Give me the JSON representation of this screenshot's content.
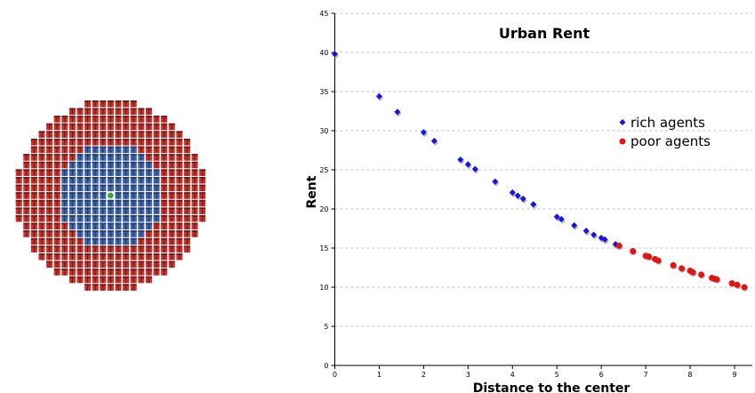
{
  "city": {
    "colors": {
      "rich": "#3d63a8",
      "rich_dark": "#1e3568",
      "poor": "#c6312b",
      "poor_dark": "#6a1511",
      "center": "#3aa63a"
    },
    "center": [
      14,
      12
    ],
    "radius": 12.5,
    "rich_radius": 6.8
  },
  "chart_data": {
    "type": "scatter",
    "title": "Urban Rent",
    "xlabel": "Distance to the center",
    "ylabel": "Rent",
    "xlim": [
      0,
      9.4
    ],
    "ylim": [
      0,
      45
    ],
    "xticks": [
      0,
      1,
      2,
      3,
      4,
      5,
      6,
      7,
      8,
      9
    ],
    "yticks": [
      0,
      5,
      10,
      15,
      20,
      25,
      30,
      35,
      40,
      45
    ],
    "grid": "horizontal dashed",
    "legend_position": "right, upper middle",
    "series": [
      {
        "name": "rich agents",
        "color": "#1414e6",
        "marker": "diamond",
        "points": [
          [
            0,
            39.8
          ],
          [
            1.0,
            34.4
          ],
          [
            1.41,
            32.4
          ],
          [
            2.0,
            29.8
          ],
          [
            2.24,
            28.7
          ],
          [
            2.83,
            26.3
          ],
          [
            3.0,
            25.7
          ],
          [
            3.16,
            25.1
          ],
          [
            3.61,
            23.5
          ],
          [
            4.0,
            22.1
          ],
          [
            4.12,
            21.7
          ],
          [
            4.24,
            21.3
          ],
          [
            4.47,
            20.6
          ],
          [
            5.0,
            19.0
          ],
          [
            5.1,
            18.7
          ],
          [
            5.39,
            17.9
          ],
          [
            5.66,
            17.2
          ],
          [
            5.83,
            16.7
          ],
          [
            6.0,
            16.3
          ],
          [
            6.08,
            16.1
          ],
          [
            6.32,
            15.5
          ]
        ]
      },
      {
        "name": "poor agents",
        "color": "#e51414",
        "marker": "circle",
        "points": [
          [
            6.4,
            15.3
          ],
          [
            6.71,
            14.6
          ],
          [
            7.0,
            14.0
          ],
          [
            7.07,
            13.9
          ],
          [
            7.21,
            13.6
          ],
          [
            7.28,
            13.4
          ],
          [
            7.62,
            12.8
          ],
          [
            7.81,
            12.4
          ],
          [
            8.0,
            12.1
          ],
          [
            8.06,
            11.9
          ],
          [
            8.25,
            11.6
          ],
          [
            8.49,
            11.2
          ],
          [
            8.54,
            11.1
          ],
          [
            8.6,
            11.0
          ],
          [
            8.94,
            10.5
          ],
          [
            9.06,
            10.3
          ],
          [
            9.22,
            10.0
          ]
        ]
      }
    ]
  }
}
